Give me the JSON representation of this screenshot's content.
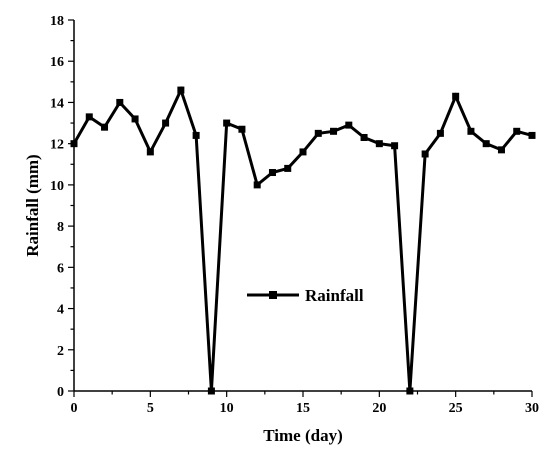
{
  "chart_data": {
    "type": "line",
    "xlabel": "Time (day)",
    "ylabel": "Rainfall (mm)",
    "xlim": [
      0,
      30
    ],
    "ylim": [
      0,
      18
    ],
    "x_ticks": [
      0,
      5,
      10,
      15,
      20,
      25,
      30
    ],
    "y_ticks": [
      0,
      2,
      4,
      6,
      8,
      10,
      12,
      14,
      16,
      18
    ],
    "grid": false,
    "legend_position": "center",
    "series": [
      {
        "name": "Rainfall",
        "color": "#000000",
        "marker": "square",
        "x": [
          0,
          1,
          2,
          3,
          4,
          5,
          6,
          7,
          8,
          9,
          10,
          11,
          12,
          13,
          14,
          15,
          16,
          17,
          18,
          19,
          20,
          21,
          22,
          23,
          24,
          25,
          26,
          27,
          28,
          29,
          30
        ],
        "y": [
          12.0,
          13.3,
          12.8,
          14.0,
          13.2,
          11.6,
          13.0,
          14.6,
          12.4,
          0.0,
          13.0,
          12.7,
          10.0,
          10.6,
          10.8,
          11.6,
          12.5,
          12.6,
          12.9,
          12.3,
          12.0,
          11.9,
          0.0,
          11.5,
          12.5,
          14.3,
          12.6,
          12.0,
          11.7,
          12.6,
          12.4
        ]
      }
    ]
  }
}
